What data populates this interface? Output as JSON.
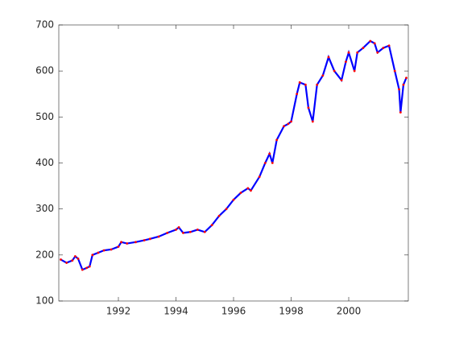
{
  "chart_data": {
    "type": "line",
    "x": [
      1990.0,
      1990.2,
      1990.4,
      1990.5,
      1990.6,
      1990.75,
      1990.9,
      1991.0,
      1991.1,
      1991.3,
      1991.5,
      1991.75,
      1992.0,
      1992.1,
      1992.3,
      1992.6,
      1992.9,
      1993.1,
      1993.4,
      1993.7,
      1994.0,
      1994.1,
      1994.25,
      1994.5,
      1994.75,
      1995.0,
      1995.25,
      1995.5,
      1995.75,
      1996.0,
      1996.25,
      1996.5,
      1996.6,
      1996.9,
      1997.1,
      1997.25,
      1997.35,
      1997.5,
      1997.75,
      1997.9,
      1998.0,
      1998.2,
      1998.3,
      1998.5,
      1998.6,
      1998.75,
      1998.9,
      1999.1,
      1999.3,
      1999.5,
      1999.75,
      1999.9,
      2000.0,
      2000.2,
      2000.3,
      2000.5,
      2000.75,
      2000.9,
      2001.0,
      2001.2,
      2001.4,
      2001.6,
      2001.75,
      2001.8,
      2001.9,
      2002.0
    ],
    "series": [
      {
        "color": "#0000ff",
        "marker_color": "#ff0000",
        "values": [
          190,
          183,
          188,
          197,
          192,
          168,
          172,
          175,
          200,
          205,
          210,
          212,
          218,
          228,
          225,
          228,
          232,
          235,
          240,
          248,
          255,
          260,
          248,
          250,
          255,
          250,
          265,
          285,
          300,
          320,
          335,
          345,
          340,
          370,
          400,
          420,
          400,
          450,
          480,
          485,
          490,
          550,
          575,
          570,
          520,
          490,
          570,
          590,
          630,
          600,
          580,
          620,
          640,
          600,
          640,
          650,
          665,
          660,
          640,
          650,
          655,
          600,
          560,
          510,
          570,
          585
        ]
      }
    ],
    "xlim": [
      1989.93,
      2002.07
    ],
    "xticks": [
      1992,
      1994,
      1996,
      1998,
      2000
    ],
    "ylim": [
      100,
      700
    ],
    "yticks": [
      100,
      200,
      300,
      400,
      500,
      600,
      700
    ]
  }
}
